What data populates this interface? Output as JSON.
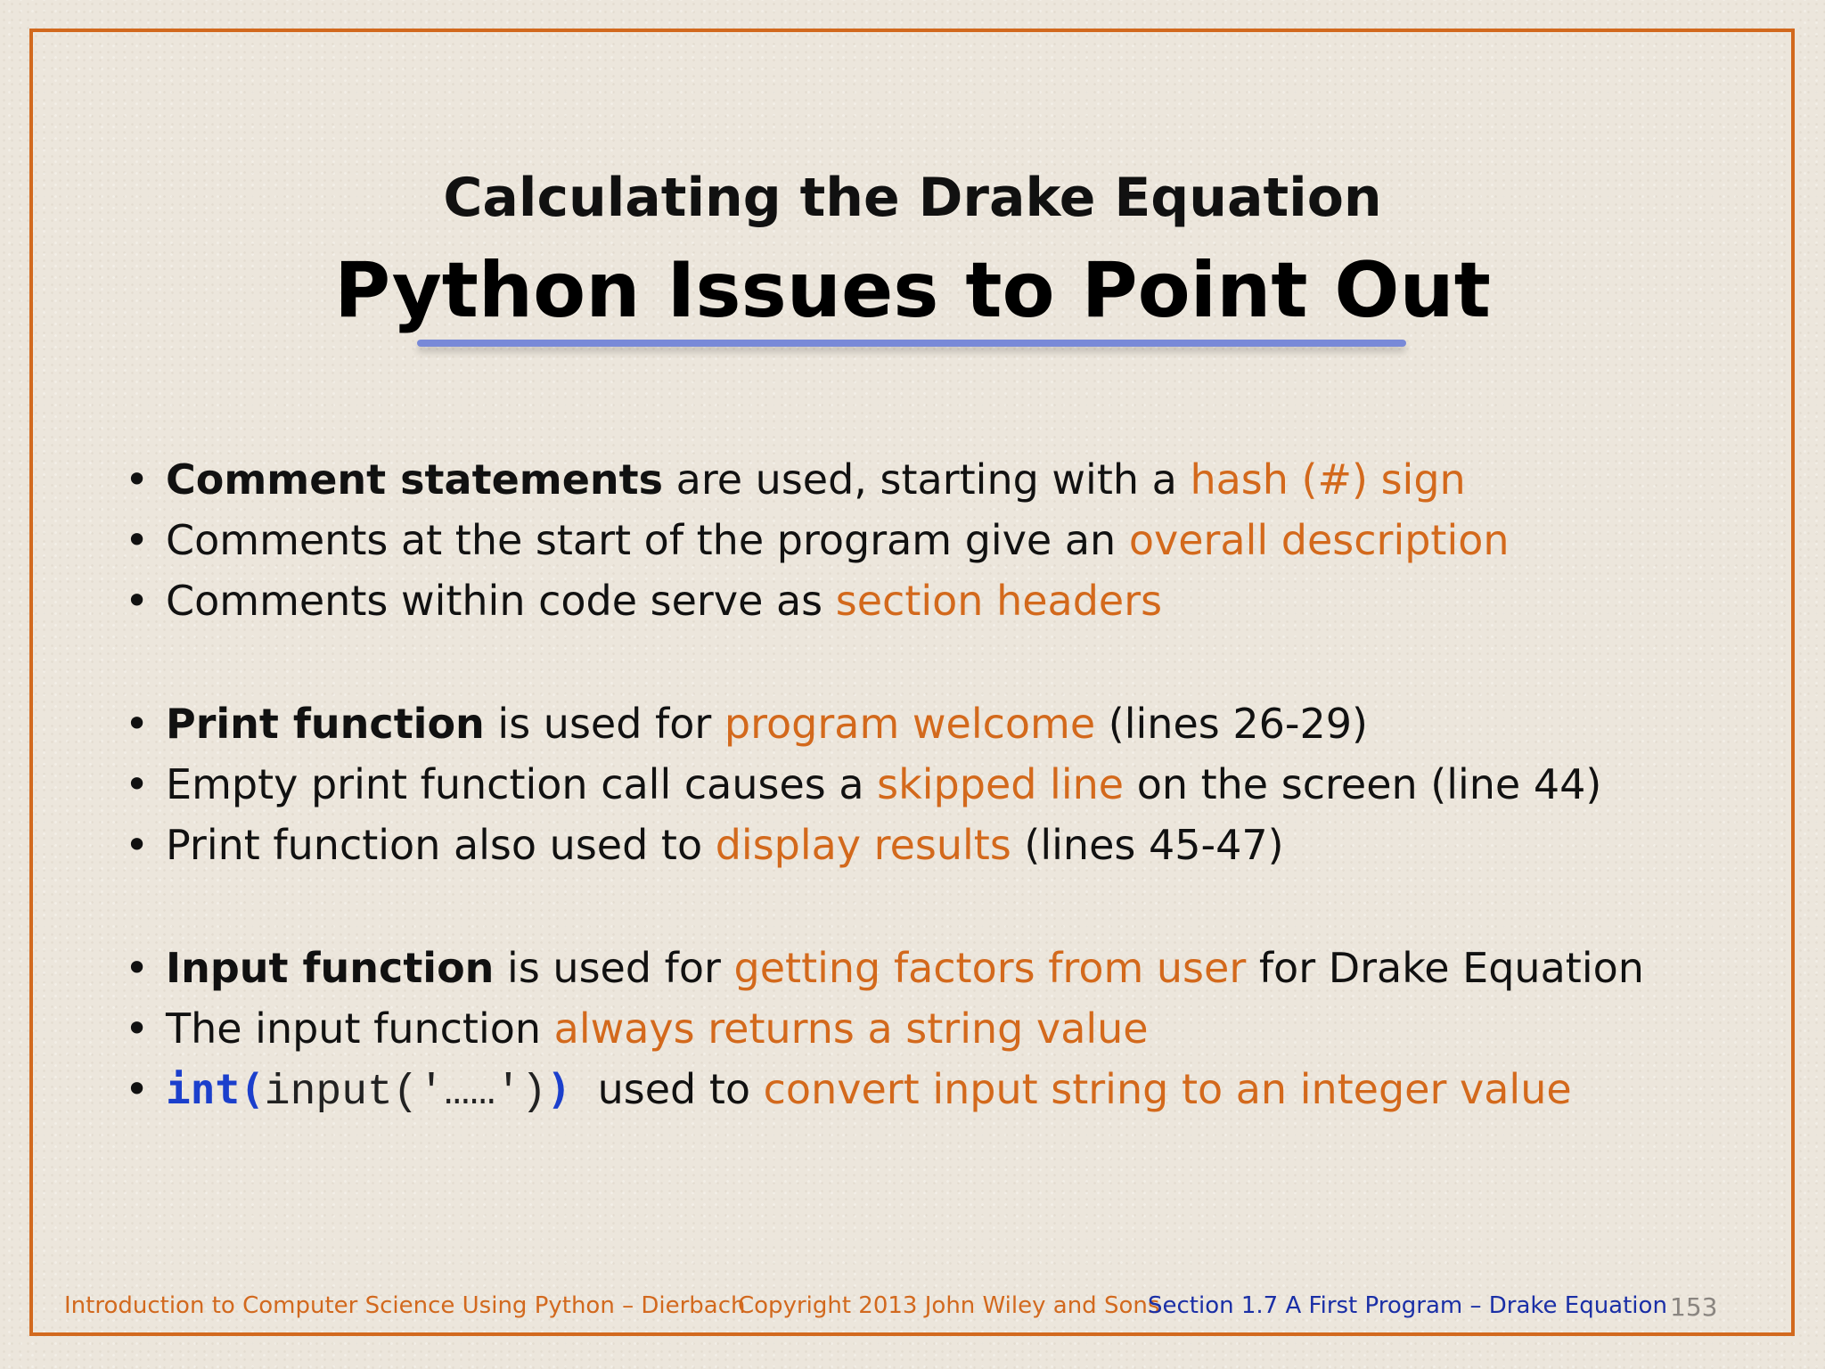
{
  "slide": {
    "subtitle": "Calculating the Drake Equation",
    "title": "Python Issues to Point Out"
  },
  "bullets": [
    [
      {
        "t": "Comment statements",
        "s": "bold"
      },
      {
        "t": " are used, starting with a "
      },
      {
        "t": "hash (#) sign",
        "s": "hl"
      }
    ],
    [
      {
        "t": "Comments at the start of the program give an "
      },
      {
        "t": "overall description",
        "s": "hl"
      }
    ],
    [
      {
        "t": "Comments within code serve as "
      },
      {
        "t": "section headers",
        "s": "hl"
      }
    ],
    [
      {
        "t": "Print function",
        "s": "bold"
      },
      {
        "t": " is used for "
      },
      {
        "t": "program welcome",
        "s": "hl"
      },
      {
        "t": " (lines 26-29)"
      }
    ],
    [
      {
        "t": "Empty print function call causes a "
      },
      {
        "t": "skipped line",
        "s": "hl"
      },
      {
        "t": " on the screen (line 44)"
      }
    ],
    [
      {
        "t": "Print function also used to "
      },
      {
        "t": "display results",
        "s": "hl"
      },
      {
        "t": " (lines 45-47)"
      }
    ],
    [
      {
        "t": "Input function",
        "s": "bold"
      },
      {
        "t": " is used for "
      },
      {
        "t": "getting factors from user",
        "s": "hl"
      },
      {
        "t": " for Drake Equation"
      }
    ],
    [
      {
        "t": "The input function "
      },
      {
        "t": "always returns a string value",
        "s": "hl"
      }
    ],
    [
      {
        "t": "int(",
        "s": "kw"
      },
      {
        "t": "input('……')",
        "s": "mono"
      },
      {
        "t": ")",
        "s": "kw"
      },
      {
        "t": "  used to "
      },
      {
        "t": "convert input string to an integer value",
        "s": "hl"
      }
    ]
  ],
  "bullet_symbol": "•",
  "footer": {
    "book": "Introduction to Computer Science Using Python – Dierbach",
    "copyright": "Copyright 2013 John Wiley and  Sons",
    "section": "Section 1.7  A First Program – Drake Equation",
    "page": "153"
  },
  "colors": {
    "accent": "#d3691c",
    "border": "#d2691e",
    "code_keyword": "#1b3fcc",
    "footer_blue": "#1a2fa6",
    "underline": "#7889d8"
  }
}
